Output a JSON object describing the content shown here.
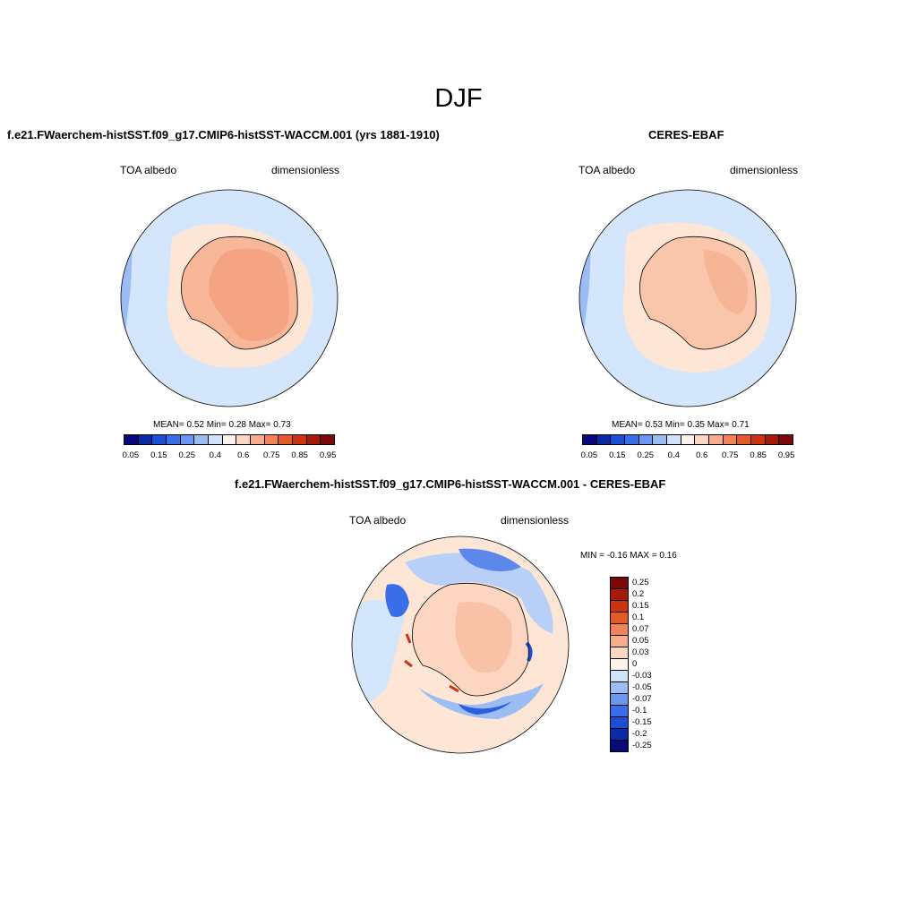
{
  "title": "DJF",
  "panels": {
    "model": {
      "title": "f.e21.FWaerchem-histSST.f09_g17.CMIP6-histSST-WACCM.001 (yrs 1881-1910)",
      "left_label": "TOA albedo",
      "right_label": "dimensionless",
      "stats": "MEAN=   0.52  Min=   0.28  Max=   0.73"
    },
    "obs": {
      "title": "CERES-EBAF",
      "left_label": "TOA albedo",
      "right_label": "dimensionless",
      "stats": "MEAN=   0.53  Min=   0.35  Max=   0.71"
    },
    "diff": {
      "title": "f.e21.FWaerchem-histSST.f09_g17.CMIP6-histSST-WACCM.001 - CERES-EBAF",
      "left_label": "TOA albedo",
      "right_label": "dimensionless",
      "stats": "MIN =  -0.16 MAX =   0.16"
    }
  },
  "colorbar_abs": {
    "colors": [
      "#08087a",
      "#0a2aa8",
      "#1c4fd6",
      "#3a6ee8",
      "#6a98f0",
      "#9cbcf4",
      "#cfe3fa",
      "#fef3ea",
      "#fcd6c0",
      "#f7ad8c",
      "#f08358",
      "#e65a2a",
      "#cc3312",
      "#a51a08",
      "#7a0808"
    ],
    "ticks": [
      "0.05",
      "0.15",
      "0.25",
      "0.4",
      "0.6",
      "0.75",
      "0.85",
      "0.95"
    ]
  },
  "colorbar_diff": {
    "colors": [
      "#7a0808",
      "#a51a08",
      "#cc3312",
      "#e65a2a",
      "#f08358",
      "#f7ad8c",
      "#fcd6c0",
      "#fef3ea",
      "#cfe3fa",
      "#9cbcf4",
      "#6a98f0",
      "#3a6ee8",
      "#1c4fd6",
      "#0a2aa8",
      "#08087a"
    ],
    "ticks": [
      "0.25",
      "0.2",
      "0.15",
      "0.1",
      "0.07",
      "0.05",
      "0.03",
      "0",
      "-0.03",
      "-0.05",
      "-0.07",
      "-0.1",
      "-0.15",
      "-0.2",
      "-0.25"
    ]
  }
}
